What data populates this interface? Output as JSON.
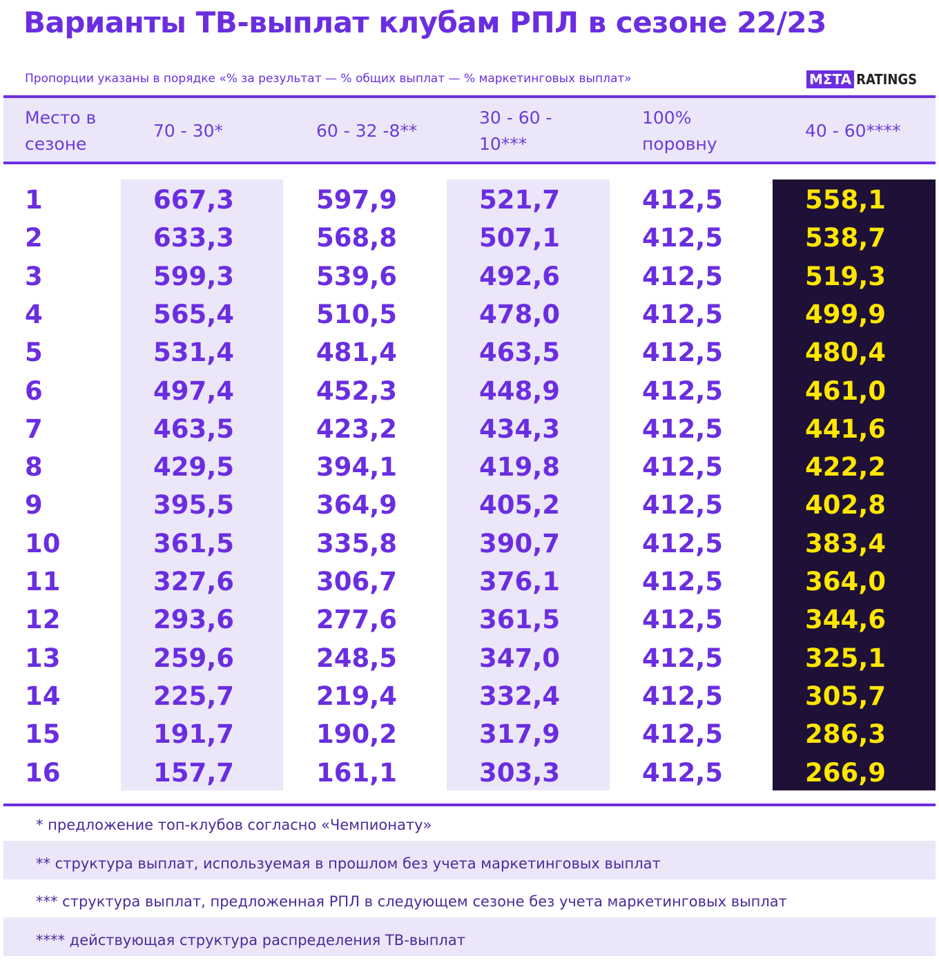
{
  "header": {
    "title": "Варианты ТВ-выплат клубам РПЛ в сезоне 22/23",
    "subtitle": "Пропорции указаны в порядке «% за результат — % общих выплат — % маркетинговых выплат»",
    "logo_left": "MΣTA",
    "logo_right": "RATINGS"
  },
  "table": {
    "columns": [
      "Место в сезоне",
      "70 - 30*",
      "60 - 32 -8**",
      "30 - 60 - 10***",
      "100% поровну",
      "40 - 60****"
    ],
    "rows": [
      [
        "1",
        "667,3",
        "597,9",
        "521,7",
        "412,5",
        "558,1"
      ],
      [
        "2",
        "633,3",
        "568,8",
        "507,1",
        "412,5",
        "538,7"
      ],
      [
        "3",
        "599,3",
        "539,6",
        "492,6",
        "412,5",
        "519,3"
      ],
      [
        "4",
        "565,4",
        "510,5",
        "478,0",
        "412,5",
        "499,9"
      ],
      [
        "5",
        "531,4",
        "481,4",
        "463,5",
        "412,5",
        "480,4"
      ],
      [
        "6",
        "497,4",
        "452,3",
        "448,9",
        "412,5",
        "461,0"
      ],
      [
        "7",
        "463,5",
        "423,2",
        "434,3",
        "412,5",
        "441,6"
      ],
      [
        "8",
        "429,5",
        "394,1",
        "419,8",
        "412,5",
        "422,2"
      ],
      [
        "9",
        "395,5",
        "364,9",
        "405,2",
        "412,5",
        "402,8"
      ],
      [
        "10",
        "361,5",
        "335,8",
        "390,7",
        "412,5",
        "383,4"
      ],
      [
        "11",
        "327,6",
        "306,7",
        "376,1",
        "412,5",
        "364,0"
      ],
      [
        "12",
        "293,6",
        "277,6",
        "361,5",
        "412,5",
        "344,6"
      ],
      [
        "13",
        "259,6",
        "248,5",
        "347,0",
        "412,5",
        "325,1"
      ],
      [
        "14",
        "225,7",
        "219,4",
        "332,4",
        "412,5",
        "305,7"
      ],
      [
        "15",
        "191,7",
        "190,2",
        "317,9",
        "412,5",
        "286,3"
      ],
      [
        "16",
        "157,7",
        "161,1",
        "303,3",
        "412,5",
        "266,9"
      ]
    ]
  },
  "footnotes": [
    "* предложение топ-клубов согласно «Чемпионату»",
    "** структура выплат, используемая в прошлом без учета маркетинговых выплат",
    "*** структура выплат, предложенная РПЛ в следующем сезоне без учета маркетинговых выплат",
    "**** действующая структура распределения ТВ-выплат"
  ]
}
